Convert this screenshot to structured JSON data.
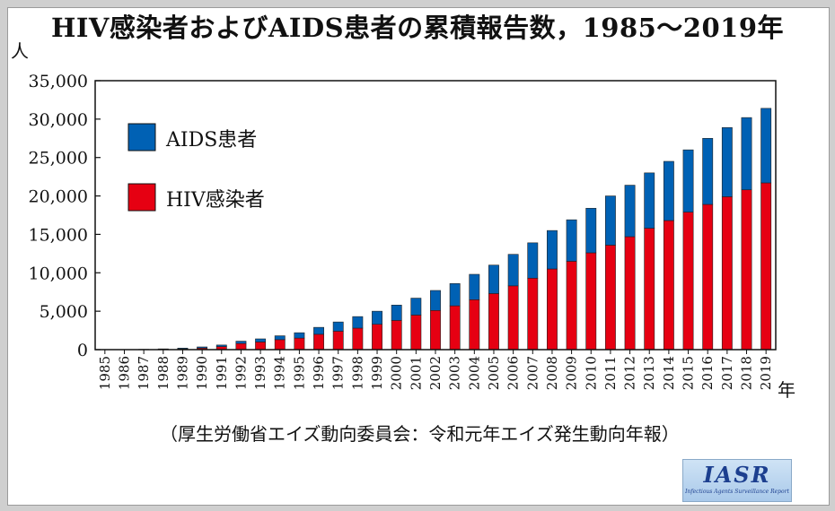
{
  "chart_data": {
    "type": "bar",
    "stacked": true,
    "title": "HIV感染者およびAIDS患者の累積報告数，1985〜2019年",
    "xlabel": "年",
    "ylabel": "人",
    "ylim": [
      0,
      35000
    ],
    "yticks": [
      "35,000",
      "30,000",
      "25,000",
      "20,000",
      "15,000",
      "10,000",
      "5,000",
      "0"
    ],
    "ytick_values": [
      35000,
      30000,
      25000,
      20000,
      15000,
      10000,
      5000,
      0
    ],
    "categories": [
      "1985",
      "1986",
      "1987",
      "1988",
      "1989",
      "1990",
      "1991",
      "1992",
      "1993",
      "1994",
      "1995",
      "1996",
      "1997",
      "1998",
      "1999",
      "2000",
      "2001",
      "2002",
      "2003",
      "2004",
      "2005",
      "2006",
      "2007",
      "2008",
      "2009",
      "2010",
      "2011",
      "2012",
      "2013",
      "2014",
      "2015",
      "2016",
      "2017",
      "2018",
      "2019"
    ],
    "series": [
      {
        "name": "HIV感染者",
        "color": "#e60012",
        "values": [
          0,
          0,
          20,
          50,
          100,
          200,
          400,
          800,
          1000,
          1300,
          1500,
          2000,
          2400,
          2800,
          3300,
          3800,
          4500,
          5100,
          5700,
          6500,
          7300,
          8300,
          9300,
          10500,
          11500,
          12600,
          13600,
          14700,
          15800,
          16800,
          17900,
          18900,
          19900,
          20800,
          21700
        ]
      },
      {
        "name": "AIDS患者",
        "color": "#0061b4",
        "values": [
          0,
          0,
          20,
          50,
          100,
          150,
          200,
          300,
          400,
          500,
          700,
          900,
          1200,
          1500,
          1700,
          2000,
          2200,
          2600,
          2900,
          3300,
          3700,
          4100,
          4600,
          5000,
          5400,
          5800,
          6400,
          6700,
          7200,
          7700,
          8100,
          8600,
          9000,
          9400,
          9700
        ]
      }
    ],
    "legend_position": "top-left",
    "grid": false
  },
  "source": "（厚生労働省エイズ動向委員会：令和元年エイズ発生動向年報）",
  "logo": {
    "text": "IASR",
    "subtext": "Infectious Agents Surveillance Report"
  }
}
